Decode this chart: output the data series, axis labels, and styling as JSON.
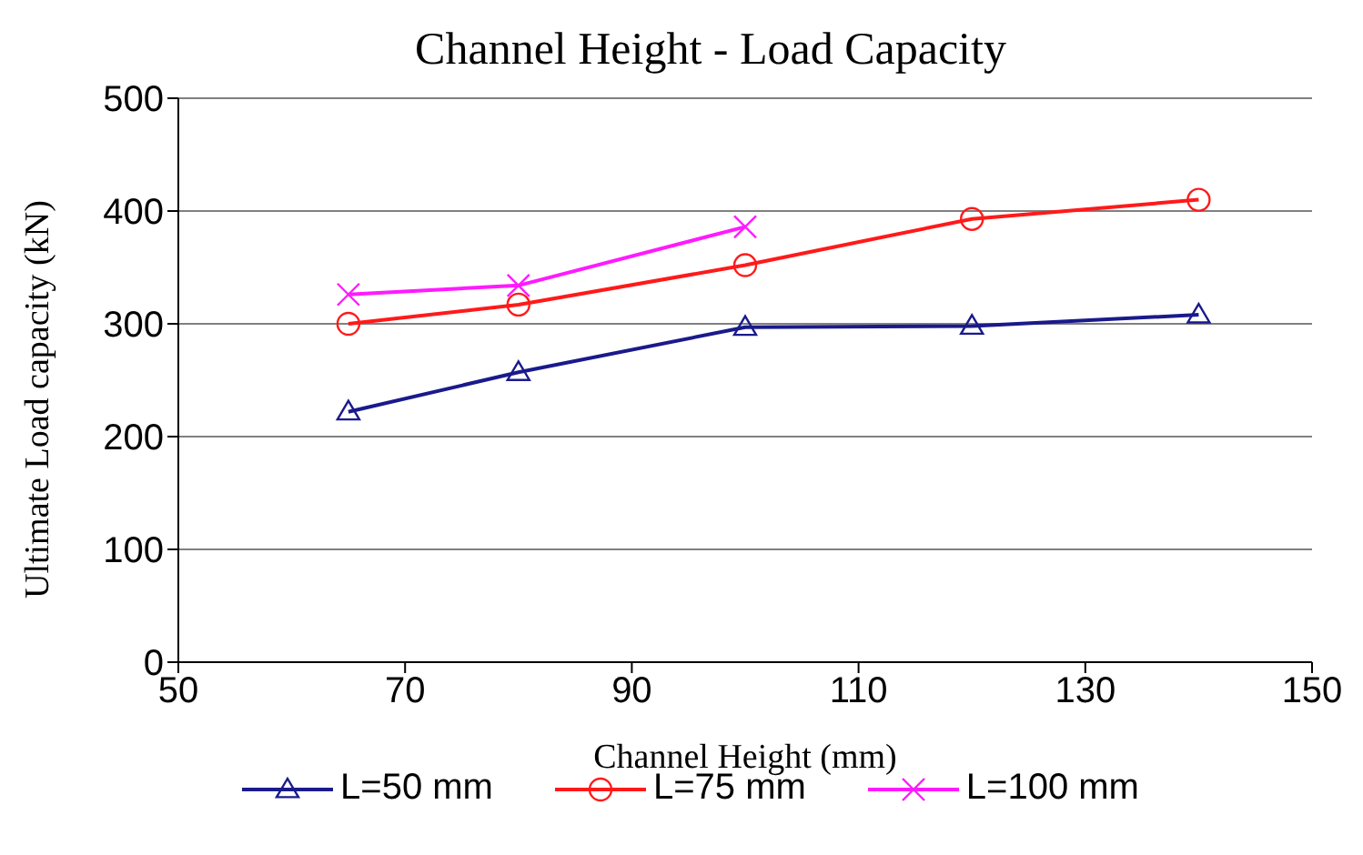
{
  "chart_data": {
    "type": "line",
    "title": "Channel Height - Load Capacity",
    "xlabel": "Channel Height (mm)",
    "ylabel": "Ultimate Load capacity (kN)",
    "xlim": [
      50,
      150
    ],
    "xticks": [
      50,
      70,
      90,
      110,
      130,
      150
    ],
    "ylim": [
      0,
      500
    ],
    "yticks": [
      0,
      100,
      200,
      300,
      400,
      500
    ],
    "grid": "y",
    "legend": "bottom",
    "series": [
      {
        "name": "L=50 mm",
        "color": "#1a1a8c",
        "marker": "triangle",
        "x": [
          65,
          80,
          100,
          120,
          140
        ],
        "values": [
          222,
          257,
          297,
          298,
          308
        ]
      },
      {
        "name": "L=75 mm",
        "color": "#ff1a1a",
        "marker": "circle",
        "x": [
          65,
          80,
          100,
          120,
          140
        ],
        "values": [
          300,
          317,
          352,
          393,
          410
        ]
      },
      {
        "name": "L=100 mm",
        "color": "#ff1aff",
        "marker": "cross",
        "x": [
          65,
          80,
          100
        ],
        "values": [
          326,
          334,
          386
        ]
      }
    ]
  }
}
